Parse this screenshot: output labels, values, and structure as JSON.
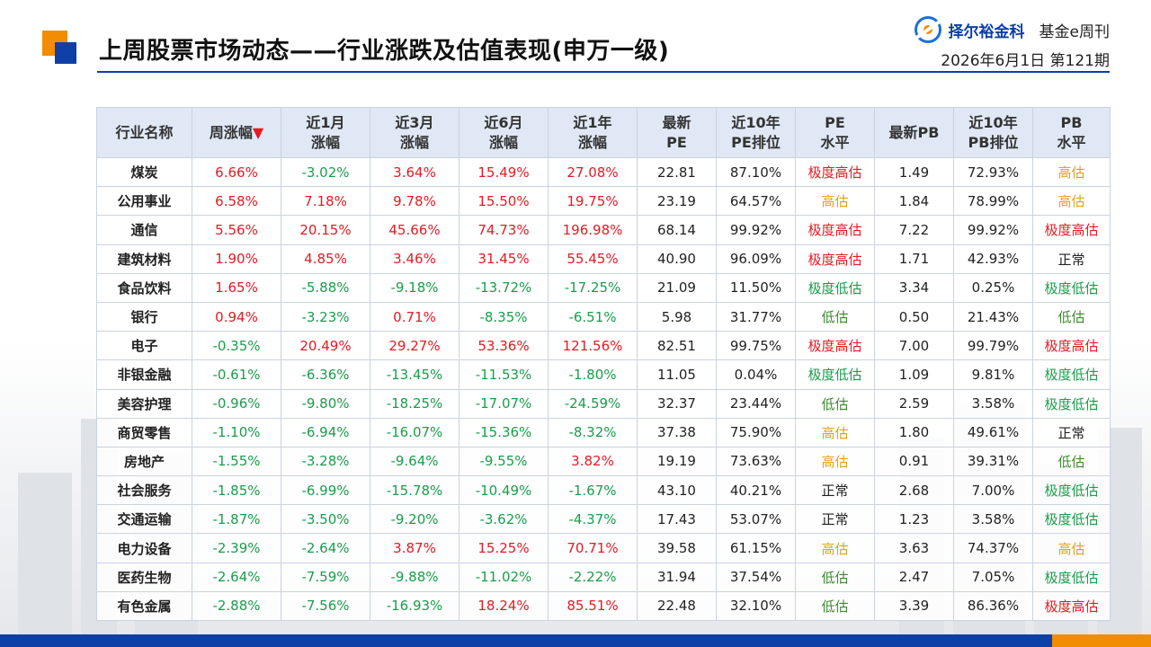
{
  "header": {
    "title": "上周股票市场动态——行业涨跌及估值表现(申万一级)",
    "brand_name": "择尔裕金科",
    "brand_publication": "基金e周刊",
    "issue": "2026年6月1日  第121期"
  },
  "table": {
    "headers": [
      {
        "l1": "行业名称",
        "l2": ""
      },
      {
        "l1": "周涨幅",
        "l2": "",
        "sort": "▼"
      },
      {
        "l1": "近1月",
        "l2": "涨幅"
      },
      {
        "l1": "近3月",
        "l2": "涨幅"
      },
      {
        "l1": "近6月",
        "l2": "涨幅"
      },
      {
        "l1": "近1年",
        "l2": "涨幅"
      },
      {
        "l1": "最新",
        "l2": "PE"
      },
      {
        "l1": "近10年",
        "l2": "PE排位"
      },
      {
        "l1": "PE",
        "l2": "水平"
      },
      {
        "l1": "最新PB",
        "l2": ""
      },
      {
        "l1": "近10年",
        "l2": "PB排位"
      },
      {
        "l1": "PB",
        "l2": "水平"
      }
    ],
    "rows": [
      {
        "name": "煤炭",
        "week": "6.66%",
        "m1": "-3.02%",
        "m3": "3.64%",
        "m6": "15.49%",
        "y1": "27.08%",
        "pe": "22.81",
        "pe_rank": "87.10%",
        "pe_level": "极度高估",
        "pb": "1.49",
        "pb_rank": "72.93%",
        "pb_level": "高估"
      },
      {
        "name": "公用事业",
        "week": "6.58%",
        "m1": "7.18%",
        "m3": "9.78%",
        "m6": "15.50%",
        "y1": "19.75%",
        "pe": "23.19",
        "pe_rank": "64.57%",
        "pe_level": "高估",
        "pb": "1.84",
        "pb_rank": "78.99%",
        "pb_level": "高估"
      },
      {
        "name": "通信",
        "week": "5.56%",
        "m1": "20.15%",
        "m3": "45.66%",
        "m6": "74.73%",
        "y1": "196.98%",
        "pe": "68.14",
        "pe_rank": "99.92%",
        "pe_level": "极度高估",
        "pb": "7.22",
        "pb_rank": "99.92%",
        "pb_level": "极度高估"
      },
      {
        "name": "建筑材料",
        "week": "1.90%",
        "m1": "4.85%",
        "m3": "3.46%",
        "m6": "31.45%",
        "y1": "55.45%",
        "pe": "40.90",
        "pe_rank": "96.09%",
        "pe_level": "极度高估",
        "pb": "1.71",
        "pb_rank": "42.93%",
        "pb_level": "正常"
      },
      {
        "name": "食品饮料",
        "week": "1.65%",
        "m1": "-5.88%",
        "m3": "-9.18%",
        "m6": "-13.72%",
        "y1": "-17.25%",
        "pe": "21.09",
        "pe_rank": "11.50%",
        "pe_level": "极度低估",
        "pb": "3.34",
        "pb_rank": "0.25%",
        "pb_level": "极度低估"
      },
      {
        "name": "银行",
        "week": "0.94%",
        "m1": "-3.23%",
        "m3": "0.71%",
        "m6": "-8.35%",
        "y1": "-6.51%",
        "pe": "5.98",
        "pe_rank": "31.77%",
        "pe_level": "低估",
        "pb": "0.50",
        "pb_rank": "21.43%",
        "pb_level": "低估"
      },
      {
        "name": "电子",
        "week": "-0.35%",
        "m1": "20.49%",
        "m3": "29.27%",
        "m6": "53.36%",
        "y1": "121.56%",
        "pe": "82.51",
        "pe_rank": "99.75%",
        "pe_level": "极度高估",
        "pb": "7.00",
        "pb_rank": "99.79%",
        "pb_level": "极度高估"
      },
      {
        "name": "非银金融",
        "week": "-0.61%",
        "m1": "-6.36%",
        "m3": "-13.45%",
        "m6": "-11.53%",
        "y1": "-1.80%",
        "pe": "11.05",
        "pe_rank": "0.04%",
        "pe_level": "极度低估",
        "pb": "1.09",
        "pb_rank": "9.81%",
        "pb_level": "极度低估"
      },
      {
        "name": "美容护理",
        "week": "-0.96%",
        "m1": "-9.80%",
        "m3": "-18.25%",
        "m6": "-17.07%",
        "y1": "-24.59%",
        "pe": "32.37",
        "pe_rank": "23.44%",
        "pe_level": "低估",
        "pb": "2.59",
        "pb_rank": "3.58%",
        "pb_level": "极度低估"
      },
      {
        "name": "商贸零售",
        "week": "-1.10%",
        "m1": "-6.94%",
        "m3": "-16.07%",
        "m6": "-15.36%",
        "y1": "-8.32%",
        "pe": "37.38",
        "pe_rank": "75.90%",
        "pe_level": "高估",
        "pb": "1.80",
        "pb_rank": "49.61%",
        "pb_level": "正常"
      },
      {
        "name": "房地产",
        "week": "-1.55%",
        "m1": "-3.28%",
        "m3": "-9.64%",
        "m6": "-9.55%",
        "y1": "3.82%",
        "pe": "19.19",
        "pe_rank": "73.63%",
        "pe_level": "高估",
        "pb": "0.91",
        "pb_rank": "39.31%",
        "pb_level": "低估"
      },
      {
        "name": "社会服务",
        "week": "-1.85%",
        "m1": "-6.99%",
        "m3": "-15.78%",
        "m6": "-10.49%",
        "y1": "-1.67%",
        "pe": "43.10",
        "pe_rank": "40.21%",
        "pe_level": "正常",
        "pb": "2.68",
        "pb_rank": "7.00%",
        "pb_level": "极度低估"
      },
      {
        "name": "交通运输",
        "week": "-1.87%",
        "m1": "-3.50%",
        "m3": "-9.20%",
        "m6": "-3.62%",
        "y1": "-4.37%",
        "pe": "17.43",
        "pe_rank": "53.07%",
        "pe_level": "正常",
        "pb": "1.23",
        "pb_rank": "3.58%",
        "pb_level": "极度低估"
      },
      {
        "name": "电力设备",
        "week": "-2.39%",
        "m1": "-2.64%",
        "m3": "3.87%",
        "m6": "15.25%",
        "y1": "70.71%",
        "pe": "39.58",
        "pe_rank": "61.15%",
        "pe_level": "高估",
        "pb": "3.63",
        "pb_rank": "74.37%",
        "pb_level": "高估"
      },
      {
        "name": "医药生物",
        "week": "-2.64%",
        "m1": "-7.59%",
        "m3": "-9.88%",
        "m6": "-11.02%",
        "y1": "-2.22%",
        "pe": "31.94",
        "pe_rank": "37.54%",
        "pe_level": "低估",
        "pb": "2.47",
        "pb_rank": "7.05%",
        "pb_level": "极度低估"
      },
      {
        "name": "有色金属",
        "week": "-2.88%",
        "m1": "-7.56%",
        "m3": "-16.93%",
        "m6": "18.24%",
        "y1": "85.51%",
        "pe": "22.48",
        "pe_rank": "32.10%",
        "pe_level": "低估",
        "pb": "3.39",
        "pb_rank": "86.36%",
        "pb_level": "极度高估"
      }
    ]
  },
  "colors": {
    "up": "#e31b23",
    "down": "#1a9d4a",
    "brand_blue": "#0d3fa6",
    "accent_orange": "#f28c00",
    "level_very_high": "#e31b23",
    "level_high": "#e2a21a",
    "level_low": "#3e8a2e",
    "level_very_low": "#1a9d4a"
  }
}
